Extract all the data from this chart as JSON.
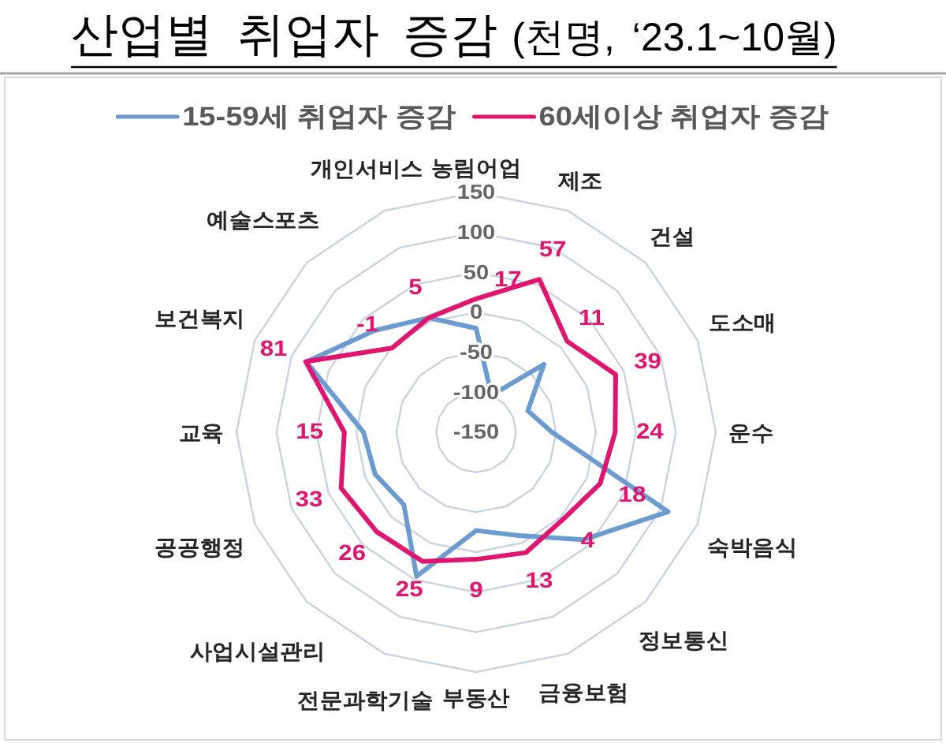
{
  "chart_data": {
    "type": "radar",
    "title": "산업별 취업자 증감",
    "subtitle": "(천명, ‘23.1~10월)",
    "categories": [
      "농림어업",
      "제조",
      "건설",
      "도소매",
      "운수",
      "숙박음식",
      "정보통신",
      "금융보험",
      "부동산",
      "전문과학기술",
      "사업시설관리",
      "공공행정",
      "교육",
      "보건복지",
      "예술스포츠",
      "개인서비스"
    ],
    "series": [
      {
        "name": "15-59세 취업자 증감",
        "color": "#6b9bd1",
        "values": [
          -20,
          -100,
          -30,
          -80,
          -55,
          110,
          40,
          -10,
          -27,
          45,
          -22,
          -13,
          -9,
          80,
          30,
          5
        ]
      },
      {
        "name": "60세이상 취업자 증감",
        "color": "#e0156f",
        "values": [
          17,
          57,
          11,
          39,
          24,
          18,
          4,
          13,
          9,
          25,
          26,
          33,
          15,
          81,
          -1,
          5
        ],
        "value_labels": [
          "17",
          "57",
          "11",
          "39",
          "24",
          "18",
          "4",
          "13",
          "9",
          "25",
          "26",
          "33",
          "15",
          "81",
          "-1",
          "5"
        ]
      }
    ],
    "ylim": [
      -150,
      150
    ],
    "yticks": [
      -150,
      -100,
      -50,
      0,
      50,
      100,
      150
    ],
    "grid": true,
    "legend": "top"
  }
}
